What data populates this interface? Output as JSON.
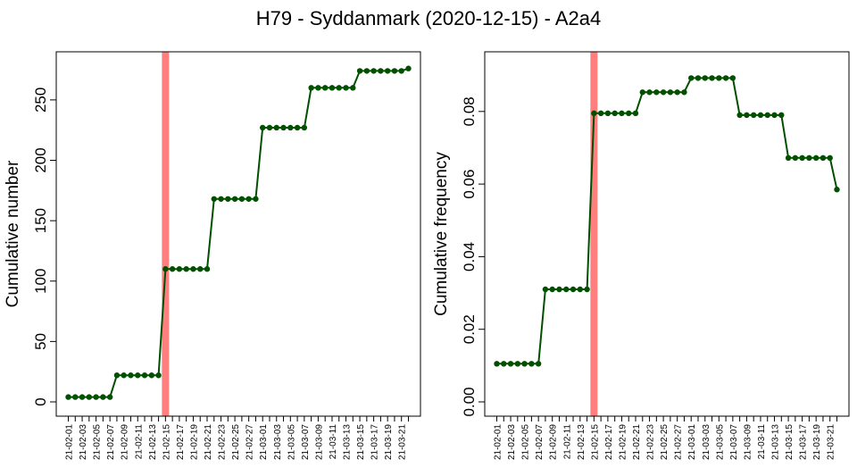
{
  "figure": {
    "title": "H79 - Syddanmark (2020-12-15) - A2a4"
  },
  "colors": {
    "line": "#005000",
    "point": "#005000",
    "highlight": "#ff7f7f",
    "axis": "#000000"
  },
  "chart_data": [
    {
      "type": "line",
      "ylabel": "Cumulative number",
      "ylim": [
        0,
        278
      ],
      "yticks": [
        0,
        50,
        100,
        150,
        200,
        250
      ],
      "highlight_date": "21-02-15",
      "x_tick_labels": [
        "21-02-01",
        "21-02-03",
        "21-02-05",
        "21-02-07",
        "21-02-09",
        "21-02-11",
        "21-02-13",
        "21-02-15",
        "21-02-17",
        "21-02-19",
        "21-02-21",
        "21-02-23",
        "21-02-25",
        "21-02-27",
        "21-03-01",
        "21-03-03",
        "21-03-05",
        "21-03-07",
        "21-03-09",
        "21-03-11",
        "21-03-13",
        "21-03-15",
        "21-03-17",
        "21-03-19",
        "21-03-21"
      ],
      "x": [
        "21-02-01",
        "21-02-02",
        "21-02-03",
        "21-02-04",
        "21-02-05",
        "21-02-06",
        "21-02-07",
        "21-02-08",
        "21-02-09",
        "21-02-10",
        "21-02-11",
        "21-02-12",
        "21-02-13",
        "21-02-14",
        "21-02-15",
        "21-02-16",
        "21-02-17",
        "21-02-18",
        "21-02-19",
        "21-02-20",
        "21-02-21",
        "21-02-22",
        "21-02-23",
        "21-02-24",
        "21-02-25",
        "21-02-26",
        "21-02-27",
        "21-02-28",
        "21-03-01",
        "21-03-02",
        "21-03-03",
        "21-03-04",
        "21-03-05",
        "21-03-06",
        "21-03-07",
        "21-03-08",
        "21-03-09",
        "21-03-10",
        "21-03-11",
        "21-03-12",
        "21-03-13",
        "21-03-14",
        "21-03-15",
        "21-03-16",
        "21-03-17",
        "21-03-18",
        "21-03-19",
        "21-03-20",
        "21-03-21",
        "21-03-22"
      ],
      "values": [
        4,
        4,
        4,
        4,
        4,
        4,
        4,
        22,
        22,
        22,
        22,
        22,
        22,
        22,
        110,
        110,
        110,
        110,
        110,
        110,
        110,
        168,
        168,
        168,
        168,
        168,
        168,
        168,
        227,
        227,
        227,
        227,
        227,
        227,
        227,
        260,
        260,
        260,
        260,
        260,
        260,
        260,
        274,
        274,
        274,
        274,
        274,
        274,
        274,
        276
      ]
    },
    {
      "type": "line",
      "ylabel": "Cumulative frequency",
      "ylim": [
        0,
        0.0925
      ],
      "yticks": [
        0.0,
        0.02,
        0.04,
        0.06,
        0.08
      ],
      "ytick_labels": [
        "0.00",
        "0.02",
        "0.04",
        "0.06",
        "0.08"
      ],
      "highlight_date": "21-02-15",
      "x_tick_labels": [
        "21-02-01",
        "21-02-03",
        "21-02-05",
        "21-02-07",
        "21-02-09",
        "21-02-11",
        "21-02-13",
        "21-02-15",
        "21-02-17",
        "21-02-19",
        "21-02-21",
        "21-02-23",
        "21-02-25",
        "21-02-27",
        "21-03-01",
        "21-03-03",
        "21-03-05",
        "21-03-07",
        "21-03-09",
        "21-03-11",
        "21-03-13",
        "21-03-15",
        "21-03-17",
        "21-03-19",
        "21-03-21"
      ],
      "x": [
        "21-02-01",
        "21-02-02",
        "21-02-03",
        "21-02-04",
        "21-02-05",
        "21-02-06",
        "21-02-07",
        "21-02-08",
        "21-02-09",
        "21-02-10",
        "21-02-11",
        "21-02-12",
        "21-02-13",
        "21-02-14",
        "21-02-15",
        "21-02-16",
        "21-02-17",
        "21-02-18",
        "21-02-19",
        "21-02-20",
        "21-02-21",
        "21-02-22",
        "21-02-23",
        "21-02-24",
        "21-02-25",
        "21-02-26",
        "21-02-27",
        "21-02-28",
        "21-03-01",
        "21-03-02",
        "21-03-03",
        "21-03-04",
        "21-03-05",
        "21-03-06",
        "21-03-07",
        "21-03-08",
        "21-03-09",
        "21-03-10",
        "21-03-11",
        "21-03-12",
        "21-03-13",
        "21-03-14",
        "21-03-15",
        "21-03-16",
        "21-03-17",
        "21-03-18",
        "21-03-19",
        "21-03-20",
        "21-03-21",
        "21-03-22"
      ],
      "values": [
        0.0105,
        0.0105,
        0.0105,
        0.0105,
        0.0105,
        0.0105,
        0.0105,
        0.031,
        0.031,
        0.031,
        0.031,
        0.031,
        0.031,
        0.031,
        0.0795,
        0.0795,
        0.0795,
        0.0795,
        0.0795,
        0.0795,
        0.0795,
        0.0853,
        0.0853,
        0.0853,
        0.0853,
        0.0853,
        0.0853,
        0.0853,
        0.0892,
        0.0892,
        0.0892,
        0.0892,
        0.0892,
        0.0892,
        0.0892,
        0.079,
        0.079,
        0.079,
        0.079,
        0.079,
        0.079,
        0.079,
        0.0672,
        0.0672,
        0.0672,
        0.0672,
        0.0672,
        0.0672,
        0.0672,
        0.0585
      ]
    }
  ]
}
